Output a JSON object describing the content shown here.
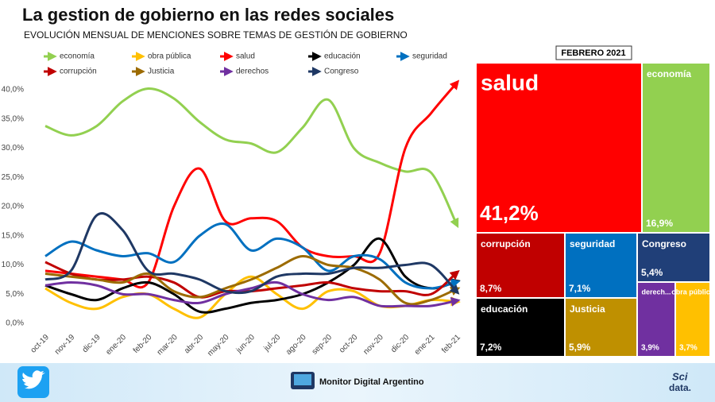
{
  "chart_data": [
    {
      "type": "line",
      "title": "La gestion de gobierno en las redes sociales",
      "subtitle": "EVOLUCIÓN MENSUAL DE MENCIONES SOBRE TEMAS DE GESTIÓN DE GOBIERNO",
      "categories": [
        "oct-19",
        "nov-19",
        "dic-19",
        "ene-20",
        "feb-20",
        "mar-20",
        "abr-20",
        "may-20",
        "jun-20",
        "jul-20",
        "ago-20",
        "sep-20",
        "oct-20",
        "nov-20",
        "dic-20",
        "ene-21",
        "feb-21"
      ],
      "ylim": [
        0,
        40
      ],
      "yticks": [
        {
          "value": 0,
          "label": "0,0%"
        },
        {
          "value": 5,
          "label": "5,0%"
        },
        {
          "value": 10,
          "label": "10,0%"
        },
        {
          "value": 15,
          "label": "15,0%"
        },
        {
          "value": 20,
          "label": "20,0%"
        },
        {
          "value": 25,
          "label": "25,0%"
        },
        {
          "value": 30,
          "label": "30,0%"
        },
        {
          "value": 35,
          "label": "35,0%"
        },
        {
          "value": 40,
          "label": "40,0%"
        }
      ],
      "grid": false,
      "series": [
        {
          "name": "economía",
          "color": "#92d050",
          "values": [
            33.8,
            32.2,
            33.8,
            38,
            40.2,
            38.5,
            34.5,
            31.5,
            30.8,
            29.3,
            33.5,
            38.3,
            30,
            27.5,
            26,
            25.8,
            16.9
          ]
        },
        {
          "name": "obra pública",
          "color": "#ffc000",
          "values": [
            6,
            3.5,
            2.5,
            4.5,
            5,
            2.5,
            1,
            5,
            8,
            5,
            2.5,
            5.5,
            5.5,
            3,
            3,
            4,
            3.7
          ]
        },
        {
          "name": "salud",
          "color": "#ff0000",
          "values": [
            9,
            8.5,
            8,
            7.5,
            7,
            20,
            26.5,
            17.5,
            18,
            17.5,
            13,
            11.5,
            11.5,
            12,
            30,
            36,
            41.2
          ]
        },
        {
          "name": "educación",
          "color": "#000000",
          "values": [
            6.5,
            5,
            4,
            6,
            7,
            5,
            2,
            2.5,
            3.5,
            4,
            5,
            7,
            10,
            14.5,
            8,
            6,
            7.2
          ]
        },
        {
          "name": "seguridad",
          "color": "#0070c0",
          "values": [
            11.5,
            14,
            12.5,
            11.5,
            12,
            10.5,
            15,
            17,
            12.5,
            14.5,
            13,
            9,
            11.5,
            11,
            7,
            6,
            7.1
          ]
        },
        {
          "name": "corrupción",
          "color": "#c00000",
          "values": [
            10.5,
            8.5,
            7.5,
            7.5,
            8,
            7,
            4.5,
            5.5,
            5.5,
            6,
            6.5,
            7,
            6,
            5.5,
            5.5,
            5,
            8.7
          ]
        },
        {
          "name": "Justicia",
          "color": "#9c6b00",
          "values": [
            8.5,
            8,
            7.5,
            7,
            8.5,
            5.5,
            4.5,
            6,
            7.5,
            9.5,
            11.5,
            10,
            9.5,
            7.5,
            3.5,
            4,
            5.9
          ]
        },
        {
          "name": "derechos",
          "color": "#7030a0",
          "values": [
            6.5,
            7,
            6.5,
            5,
            5,
            4,
            3.5,
            5,
            6,
            7,
            5,
            4,
            4.5,
            3,
            3,
            3,
            3.9
          ]
        },
        {
          "name": "Congreso",
          "color": "#1f3864",
          "values": [
            7.5,
            9,
            18.5,
            16,
            9,
            8.5,
            7.5,
            5.5,
            5.5,
            8,
            8.5,
            8.5,
            9.5,
            9.5,
            10,
            10,
            5.4
          ]
        }
      ]
    },
    {
      "type": "treemap",
      "title": "FEBRERO 2021",
      "items": [
        {
          "name": "salud",
          "value": 41.2,
          "value_label": "41,2%",
          "color": "#ff0000"
        },
        {
          "name": "economía",
          "value": 16.9,
          "value_label": "16,9%",
          "color": "#92d050"
        },
        {
          "name": "corrupción",
          "value": 8.7,
          "value_label": "8,7%",
          "color": "#c00000"
        },
        {
          "name": "seguridad",
          "value": 7.1,
          "value_label": "7,1%",
          "color": "#0070c0"
        },
        {
          "name": "Congreso",
          "value": 5.4,
          "value_label": "5,4%",
          "color": "#203f78"
        },
        {
          "name": "educación",
          "value": 7.2,
          "value_label": "7,2%",
          "color": "#000000"
        },
        {
          "name": "Justicia",
          "value": 5.9,
          "value_label": "5,9%",
          "color": "#bf9000"
        },
        {
          "name": "derech...",
          "value": 3.9,
          "value_label": "3,9%",
          "color": "#7030a0"
        },
        {
          "name": "obra pública",
          "value": 3.7,
          "value_label": "3,7%",
          "color": "#ffc000"
        }
      ]
    }
  ],
  "footer": {
    "brand": "Monitor Digital Argentino",
    "logo_top": "Sci",
    "logo_bottom": "data."
  }
}
